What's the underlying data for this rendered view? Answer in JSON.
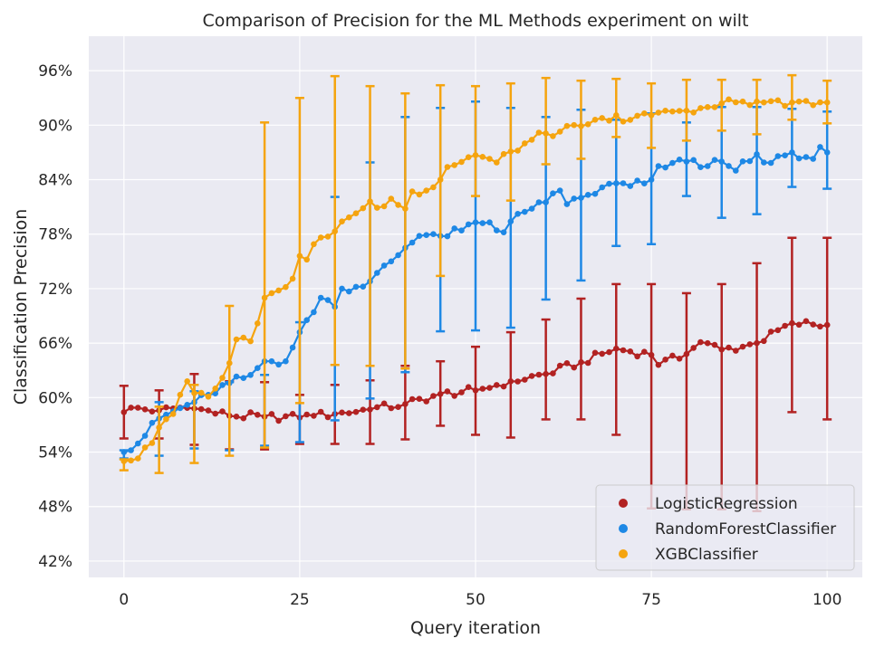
{
  "chart_data": {
    "type": "line",
    "title": "Comparison of Precision for the ML Methods experiment on wilt",
    "xlabel": "Query iteration",
    "ylabel": "Classification Precision",
    "xlim": [
      -5,
      105
    ],
    "ylim": [
      40.2,
      99.8
    ],
    "xticks": [
      0,
      25,
      50,
      75,
      100
    ],
    "yticks": [
      42,
      48,
      54,
      60,
      66,
      72,
      78,
      84,
      90,
      96
    ],
    "ytick_format": "%",
    "grid": true,
    "background": "#eaeaf2",
    "legend_position": "lower right",
    "errorbar_every": 5,
    "series": [
      {
        "name": "LogisticRegression",
        "color": "#b22222",
        "anchors": [
          [
            0,
            58.4
          ],
          [
            1,
            58.9
          ],
          [
            5,
            58.6
          ],
          [
            8,
            58.9
          ],
          [
            10,
            58.8
          ],
          [
            15,
            58.0
          ],
          [
            20,
            57.9
          ],
          [
            25,
            57.8
          ],
          [
            27,
            58.0
          ],
          [
            30,
            58.2
          ],
          [
            35,
            58.7
          ],
          [
            40,
            59.3
          ],
          [
            45,
            60.4
          ],
          [
            50,
            60.8
          ],
          [
            55,
            61.8
          ],
          [
            60,
            62.6
          ],
          [
            65,
            63.9
          ],
          [
            70,
            65.4
          ],
          [
            75,
            64.7
          ],
          [
            76,
            63.6
          ],
          [
            80,
            64.8
          ],
          [
            82,
            66.1
          ],
          [
            85,
            65.3
          ],
          [
            88,
            65.6
          ],
          [
            90,
            66.0
          ],
          [
            95,
            68.2
          ],
          [
            100,
            68.0
          ]
        ],
        "error_bars": [
          [
            0,
            55.5,
            61.3
          ],
          [
            5,
            55.5,
            60.8
          ],
          [
            10,
            54.8,
            62.6
          ],
          [
            15,
            54.3,
            61.8
          ],
          [
            20,
            54.3,
            61.7
          ],
          [
            25,
            54.9,
            60.3
          ],
          [
            30,
            54.9,
            61.4
          ],
          [
            35,
            54.9,
            61.9
          ],
          [
            40,
            55.4,
            63.5
          ],
          [
            45,
            56.9,
            64.0
          ],
          [
            50,
            55.9,
            65.6
          ],
          [
            55,
            55.6,
            67.2
          ],
          [
            60,
            57.6,
            68.6
          ],
          [
            65,
            57.6,
            70.9
          ],
          [
            70,
            55.9,
            72.5
          ],
          [
            75,
            47.8,
            72.5
          ],
          [
            80,
            47.7,
            71.5
          ],
          [
            85,
            47.7,
            72.5
          ],
          [
            90,
            47.5,
            74.8
          ],
          [
            95,
            58.4,
            77.6
          ],
          [
            100,
            57.6,
            77.6
          ]
        ]
      },
      {
        "name": "RandomForestClassifier",
        "color": "#1e88e5",
        "anchors": [
          [
            0,
            54.0
          ],
          [
            1,
            54.2
          ],
          [
            5,
            57.7
          ],
          [
            10,
            59.5
          ],
          [
            12,
            60.3
          ],
          [
            15,
            61.6
          ],
          [
            18,
            62.5
          ],
          [
            20,
            64.0
          ],
          [
            23,
            64.0
          ],
          [
            25,
            67.2
          ],
          [
            28,
            71.0
          ],
          [
            30,
            70.0
          ],
          [
            31,
            72.0
          ],
          [
            33,
            72.2
          ],
          [
            35,
            72.8
          ],
          [
            38,
            75.0
          ],
          [
            40,
            76.5
          ],
          [
            42,
            77.8
          ],
          [
            44,
            78.0
          ],
          [
            45,
            77.8
          ],
          [
            48,
            78.4
          ],
          [
            50,
            79.3
          ],
          [
            52,
            79.3
          ],
          [
            54,
            78.2
          ],
          [
            55,
            79.4
          ],
          [
            58,
            80.8
          ],
          [
            60,
            81.5
          ],
          [
            62,
            82.8
          ],
          [
            63,
            81.3
          ],
          [
            65,
            82.0
          ],
          [
            70,
            83.6
          ],
          [
            72,
            83.3
          ],
          [
            75,
            84.0
          ],
          [
            76,
            85.5
          ],
          [
            80,
            86.0
          ],
          [
            83,
            85.5
          ],
          [
            85,
            86.0
          ],
          [
            87,
            85.0
          ],
          [
            90,
            86.8
          ],
          [
            91,
            85.9
          ],
          [
            95,
            87.0
          ],
          [
            98,
            86.3
          ],
          [
            99,
            87.6
          ],
          [
            100,
            87.0
          ]
        ],
        "error_bars": [
          [
            0,
            53.3,
            54.2
          ],
          [
            5,
            53.6,
            59.5
          ],
          [
            10,
            54.4,
            60.7
          ],
          [
            15,
            54.2,
            61.7
          ],
          [
            20,
            54.7,
            62.5
          ],
          [
            25,
            55.1,
            68.3
          ],
          [
            30,
            57.5,
            82.1
          ],
          [
            35,
            59.9,
            85.9
          ],
          [
            40,
            62.8,
            90.9
          ],
          [
            45,
            67.3,
            91.9
          ],
          [
            50,
            67.4,
            92.6
          ],
          [
            55,
            67.7,
            91.9
          ],
          [
            60,
            70.8,
            90.9
          ],
          [
            65,
            72.9,
            91.7
          ],
          [
            70,
            76.7,
            90.6
          ],
          [
            75,
            76.9,
            91.3
          ],
          [
            80,
            82.2,
            90.3
          ],
          [
            85,
            79.8,
            92.0
          ],
          [
            90,
            80.2,
            92.0
          ],
          [
            95,
            83.2,
            91.8
          ],
          [
            100,
            83.0,
            91.5
          ]
        ]
      },
      {
        "name": "XGBClassifier",
        "color": "#f5a40f",
        "anchors": [
          [
            0,
            53.0
          ],
          [
            2,
            53.3
          ],
          [
            4,
            55.0
          ],
          [
            5,
            56.7
          ],
          [
            7,
            58.2
          ],
          [
            9,
            61.8
          ],
          [
            10,
            60.5
          ],
          [
            12,
            60.1
          ],
          [
            15,
            63.8
          ],
          [
            16,
            66.4
          ],
          [
            17,
            66.6
          ],
          [
            18,
            66.2
          ],
          [
            20,
            71.0
          ],
          [
            22,
            71.8
          ],
          [
            24,
            73.1
          ],
          [
            25,
            75.6
          ],
          [
            26,
            75.2
          ],
          [
            27,
            76.9
          ],
          [
            30,
            78.3
          ],
          [
            31,
            79.4
          ],
          [
            33,
            80.3
          ],
          [
            35,
            81.6
          ],
          [
            36,
            80.9
          ],
          [
            38,
            81.9
          ],
          [
            40,
            80.8
          ],
          [
            41,
            82.7
          ],
          [
            43,
            82.8
          ],
          [
            45,
            84.0
          ],
          [
            46,
            85.4
          ],
          [
            50,
            86.7
          ],
          [
            52,
            86.3
          ],
          [
            53,
            85.9
          ],
          [
            55,
            87.1
          ],
          [
            57,
            88.0
          ],
          [
            60,
            89.1
          ],
          [
            62,
            89.3
          ],
          [
            65,
            89.9
          ],
          [
            67,
            90.6
          ],
          [
            69,
            90.5
          ],
          [
            70,
            91.1
          ],
          [
            71,
            90.4
          ],
          [
            75,
            91.1
          ],
          [
            77,
            91.6
          ],
          [
            80,
            91.6
          ],
          [
            81,
            91.4
          ],
          [
            85,
            92.4
          ],
          [
            88,
            92.6
          ],
          [
            90,
            92.6
          ],
          [
            95,
            92.5
          ],
          [
            96,
            92.6
          ],
          [
            100,
            92.5
          ]
        ],
        "error_bars": [
          [
            0,
            52.0,
            53.2
          ],
          [
            5,
            51.7,
            59.0
          ],
          [
            10,
            52.8,
            61.4
          ],
          [
            15,
            53.6,
            70.1
          ],
          [
            20,
            54.5,
            90.3
          ],
          [
            25,
            59.4,
            93.0
          ],
          [
            30,
            63.6,
            95.4
          ],
          [
            35,
            63.5,
            94.3
          ],
          [
            40,
            63.2,
            93.5
          ],
          [
            45,
            73.4,
            94.4
          ],
          [
            50,
            82.2,
            94.3
          ],
          [
            55,
            81.7,
            94.6
          ],
          [
            60,
            85.7,
            95.2
          ],
          [
            65,
            86.3,
            94.9
          ],
          [
            70,
            88.7,
            95.1
          ],
          [
            75,
            87.5,
            94.6
          ],
          [
            80,
            88.3,
            95.0
          ],
          [
            85,
            89.4,
            95.0
          ],
          [
            90,
            89.0,
            95.0
          ],
          [
            95,
            90.6,
            95.5
          ],
          [
            100,
            90.2,
            94.9
          ]
        ]
      }
    ]
  }
}
